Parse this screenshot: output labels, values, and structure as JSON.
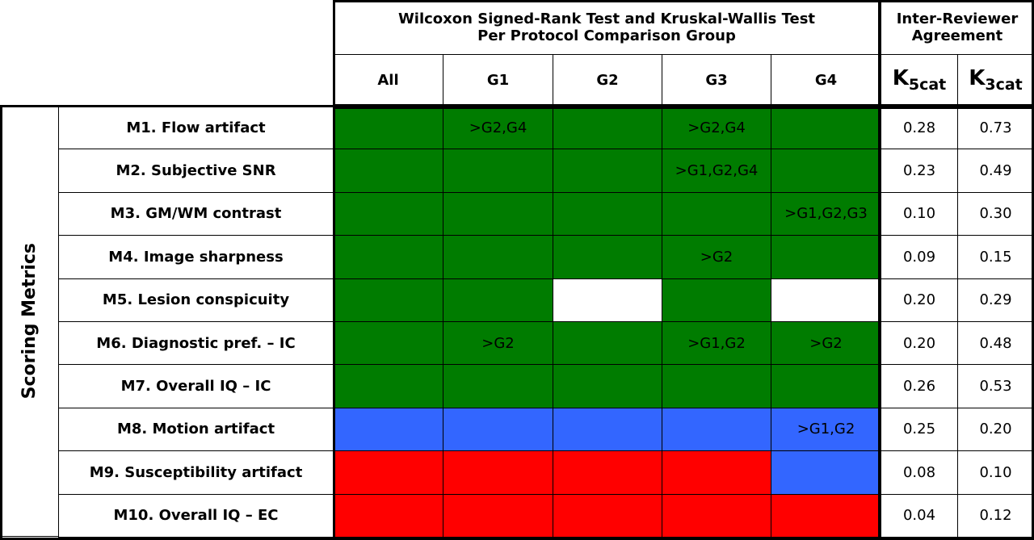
{
  "header": {
    "group_title": [
      "Wilcoxon Signed-Rank Test and Kruskal-Wallis Test",
      "Per Protocol Comparison Group"
    ],
    "agreement_title": [
      "Inter-Reviewer",
      "Agreement"
    ],
    "columns": [
      "All",
      "G1",
      "G2",
      "G3",
      "G4"
    ],
    "kappa_columns": [
      {
        "symbol": "K",
        "subscript": "5cat"
      },
      {
        "symbol": "K",
        "subscript": "3cat"
      }
    ]
  },
  "side_label": "Scoring Metrics",
  "colors": {
    "green": "#007c00",
    "blue": "#3366ff",
    "red": "#ff0000",
    "white": "#ffffff"
  },
  "rows": [
    {
      "label": "M1. Flow artifact",
      "cells": [
        {
          "fill": "green"
        },
        {
          "fill": "green",
          "text": ">G2,G4"
        },
        {
          "fill": "green"
        },
        {
          "fill": "green",
          "text": ">G2,G4"
        },
        {
          "fill": "green"
        }
      ],
      "kappa": [
        "0.28",
        "0.73"
      ]
    },
    {
      "label": "M2. Subjective SNR",
      "cells": [
        {
          "fill": "green"
        },
        {
          "fill": "green"
        },
        {
          "fill": "green"
        },
        {
          "fill": "green",
          "text": ">G1,G2,G4"
        },
        {
          "fill": "green"
        }
      ],
      "kappa": [
        "0.23",
        "0.49"
      ]
    },
    {
      "label": "M3. GM/WM contrast",
      "cells": [
        {
          "fill": "green"
        },
        {
          "fill": "green"
        },
        {
          "fill": "green"
        },
        {
          "fill": "green"
        },
        {
          "fill": "green",
          "text": ">G1,G2,G3"
        }
      ],
      "kappa": [
        "0.10",
        "0.30"
      ]
    },
    {
      "label": "M4. Image sharpness",
      "cells": [
        {
          "fill": "green"
        },
        {
          "fill": "green"
        },
        {
          "fill": "green"
        },
        {
          "fill": "green",
          "text": ">G2"
        },
        {
          "fill": "green"
        }
      ],
      "kappa": [
        "0.09",
        "0.15"
      ]
    },
    {
      "label": "M5. Lesion conspicuity",
      "cells": [
        {
          "fill": "green"
        },
        {
          "fill": "green"
        },
        {
          "fill": "white"
        },
        {
          "fill": "green"
        },
        {
          "fill": "white"
        }
      ],
      "kappa": [
        "0.20",
        "0.29"
      ]
    },
    {
      "label": "M6. Diagnostic pref. – IC",
      "cells": [
        {
          "fill": "green"
        },
        {
          "fill": "green",
          "text": ">G2"
        },
        {
          "fill": "green"
        },
        {
          "fill": "green",
          "text": ">G1,G2"
        },
        {
          "fill": "green",
          "text": ">G2"
        }
      ],
      "kappa": [
        "0.20",
        "0.48"
      ]
    },
    {
      "label": "M7. Overall IQ – IC",
      "cells": [
        {
          "fill": "green"
        },
        {
          "fill": "green"
        },
        {
          "fill": "green"
        },
        {
          "fill": "green"
        },
        {
          "fill": "green"
        }
      ],
      "kappa": [
        "0.26",
        "0.53"
      ]
    },
    {
      "label": "M8. Motion artifact",
      "cells": [
        {
          "fill": "blue"
        },
        {
          "fill": "blue"
        },
        {
          "fill": "blue"
        },
        {
          "fill": "blue"
        },
        {
          "fill": "blue",
          "text": ">G1,G2"
        }
      ],
      "kappa": [
        "0.25",
        "0.20"
      ]
    },
    {
      "label": "M9. Susceptibility artifact",
      "cells": [
        {
          "fill": "red"
        },
        {
          "fill": "red"
        },
        {
          "fill": "red"
        },
        {
          "fill": "red"
        },
        {
          "fill": "blue"
        }
      ],
      "kappa": [
        "0.08",
        "0.10"
      ]
    },
    {
      "label": "M10. Overall IQ – EC",
      "cells": [
        {
          "fill": "red"
        },
        {
          "fill": "red"
        },
        {
          "fill": "red"
        },
        {
          "fill": "red"
        },
        {
          "fill": "red"
        }
      ],
      "kappa": [
        "0.04",
        "0.12"
      ]
    }
  ]
}
